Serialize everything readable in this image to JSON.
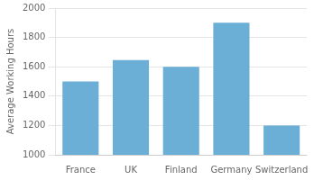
{
  "chart_data": {
    "type": "bar",
    "categories": [
      "France",
      "UK",
      "Finland",
      "Germany",
      "Switzerland"
    ],
    "values": [
      1500,
      1645,
      1600,
      1900,
      1200
    ],
    "color": "#6BAED6",
    "ylabel": "Average Working Hours",
    "ylim": [
      1000,
      2000
    ],
    "yticks": [
      1000,
      1200,
      1400,
      1600,
      1800,
      2000
    ],
    "grid": true
  }
}
